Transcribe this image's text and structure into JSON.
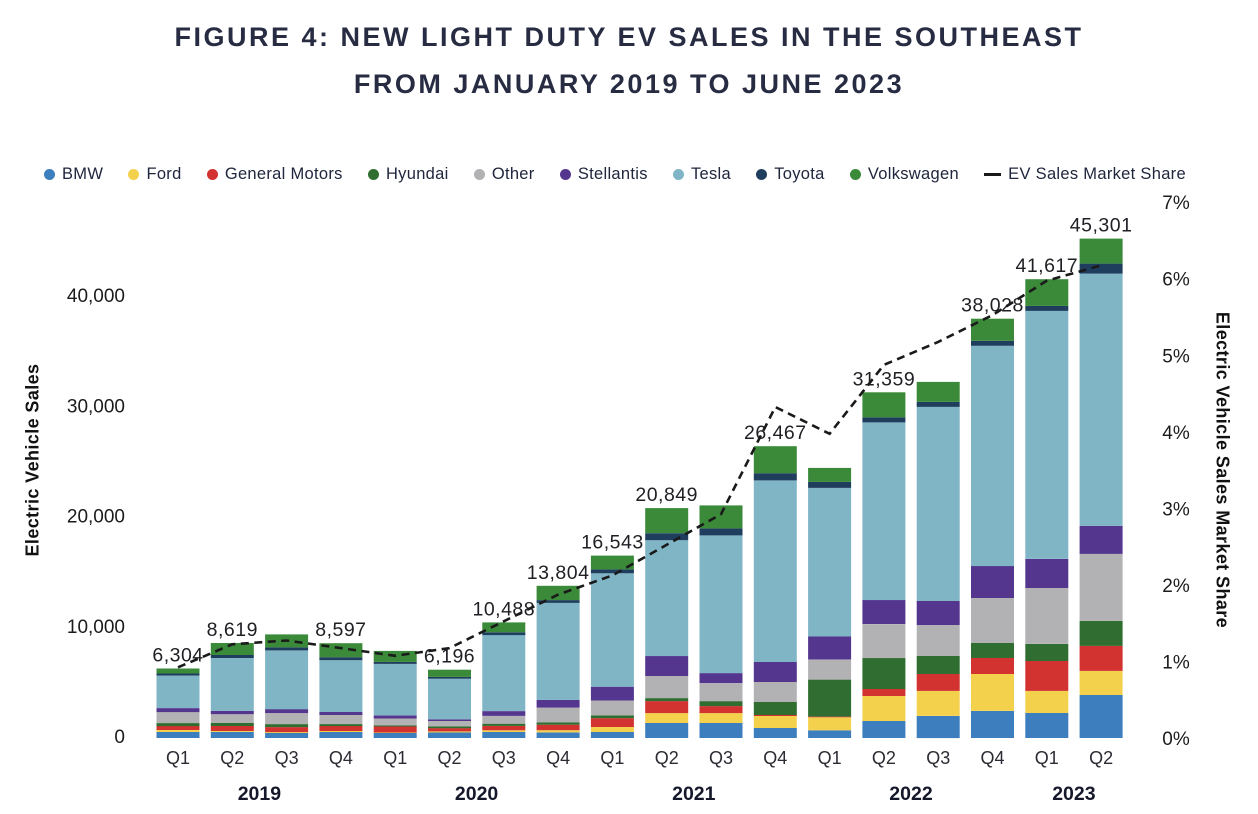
{
  "title": {
    "line1": "FIGURE 4: NEW LIGHT DUTY EV SALES IN THE SOUTHEAST",
    "line2": "FROM JANUARY 2019 TO JUNE 2023"
  },
  "colors": {
    "title_text": "#272c42",
    "legend_text": "#20263d",
    "axis_text": "#1c1c22",
    "line": "#1a1a1a",
    "background": "#ffffff"
  },
  "chart_data": {
    "type": "bar",
    "subtype": "stacked-bars-with-dashed-line-overlay",
    "title": "FIGURE 4: NEW LIGHT DUTY EV SALES IN THE SOUTHEAST FROM JANUARY 2019 TO JUNE 2023",
    "categories": [
      "Q1",
      "Q2",
      "Q3",
      "Q4",
      "Q1",
      "Q2",
      "Q3",
      "Q4",
      "Q1",
      "Q2",
      "Q3",
      "Q4",
      "Q1",
      "Q2",
      "Q3",
      "Q4",
      "Q1",
      "Q2"
    ],
    "year_groups": [
      {
        "label": "2019",
        "start": 0,
        "end": 3
      },
      {
        "label": "2020",
        "start": 4,
        "end": 7
      },
      {
        "label": "2021",
        "start": 8,
        "end": 11
      },
      {
        "label": "2022",
        "start": 12,
        "end": 15
      },
      {
        "label": "2023",
        "start": 16,
        "end": 17
      }
    ],
    "series": [
      {
        "name": "BMW",
        "color": "#3d7ebf",
        "values": [
          545,
          550,
          450,
          545,
          455,
          500,
          550,
          500,
          550,
          1360,
          1360,
          907,
          700,
          1540,
          2000,
          2450,
          2270,
          3900
        ]
      },
      {
        "name": "Ford",
        "color": "#f4d14d",
        "values": [
          180,
          90,
          90,
          90,
          45,
          96,
          150,
          204,
          450,
          900,
          900,
          1090,
          1180,
          2270,
          2270,
          3360,
          2000,
          2180
        ]
      },
      {
        "name": "General Motors",
        "color": "#d23230",
        "values": [
          360,
          450,
          450,
          450,
          545,
          300,
          400,
          500,
          800,
          1090,
          635,
          90,
          60,
          635,
          1540,
          1450,
          2720,
          2270
        ]
      },
      {
        "name": "Hyundai",
        "color": "#2f6e30",
        "values": [
          270,
          270,
          270,
          180,
          90,
          150,
          200,
          200,
          250,
          270,
          450,
          1180,
          3360,
          2810,
          1630,
          1360,
          1540,
          2270
        ]
      },
      {
        "name": "Other",
        "color": "#b2b2b4",
        "values": [
          1000,
          800,
          1000,
          820,
          640,
          500,
          700,
          1350,
          1350,
          2000,
          1630,
          1815,
          1815,
          3080,
          2810,
          4080,
          5080,
          6080
        ]
      },
      {
        "name": "Stellantis",
        "color": "#55368f",
        "values": [
          360,
          300,
          360,
          270,
          270,
          150,
          438,
          700,
          1250,
          1815,
          910,
          1815,
          2090,
          2180,
          2180,
          2900,
          2630,
          2540
        ]
      },
      {
        "name": "Tesla",
        "color": "#7fb5c5",
        "values": [
          2954,
          4799,
          5330,
          4700,
          4675,
          3700,
          6900,
          8800,
          10293,
          10509,
          12490,
          16470,
          13480,
          16114,
          17605,
          19978,
          22507,
          22884
        ]
      },
      {
        "name": "Toyota",
        "color": "#1f3e5e",
        "values": [
          180,
          270,
          270,
          270,
          180,
          150,
          250,
          250,
          350,
          635,
          635,
          650,
          545,
          450,
          450,
          450,
          450,
          907
        ]
      },
      {
        "name": "Volkswagen",
        "color": "#3a8a3a",
        "values": [
          455,
          1090,
          1180,
          1272,
          1000,
          650,
          900,
          1300,
          1250,
          2270,
          2090,
          2450,
          1270,
          2280,
          1815,
          2000,
          2420,
          2270
        ]
      }
    ],
    "bar_totals": [
      6304,
      8619,
      9400,
      8597,
      7900,
      6196,
      10488,
      13804,
      16543,
      20849,
      21100,
      26467,
      24500,
      31359,
      32300,
      38028,
      41617,
      45301
    ],
    "bar_total_labels": [
      "6,304",
      "8,619",
      "",
      "8,597",
      "",
      "6,196",
      "10,488",
      "13,804",
      "16,543",
      "20,849",
      "",
      "26,467",
      "",
      "31,359",
      "",
      "38,028",
      "41,617",
      "45,301"
    ],
    "line_series": {
      "name": "EV Sales Market Share",
      "style": "dashed",
      "color": "#1a1a1a",
      "values_percent": [
        0.95,
        1.25,
        1.3,
        1.2,
        1.1,
        1.2,
        1.55,
        1.9,
        2.15,
        2.55,
        2.95,
        4.35,
        4.0,
        4.9,
        5.2,
        5.55,
        6.0,
        6.2
      ]
    },
    "left_axis": {
      "title": "Electric Vehicle Sales",
      "range": [
        0,
        40000
      ],
      "tick_values": [
        0,
        10000,
        20000,
        30000,
        40000
      ],
      "tick_labels": [
        "0",
        "10,000",
        "20,000",
        "30,000",
        "40,000"
      ]
    },
    "right_axis": {
      "title": "Electric Vehicle Sales Market Share",
      "range": [
        0,
        7
      ],
      "tick_values": [
        0,
        1,
        2,
        3,
        4,
        5,
        6,
        7
      ],
      "tick_labels": [
        "0%",
        "1%",
        "2%",
        "3%",
        "4%",
        "5%",
        "6%",
        "7%"
      ]
    },
    "grid": "off",
    "legend_position": "top"
  }
}
